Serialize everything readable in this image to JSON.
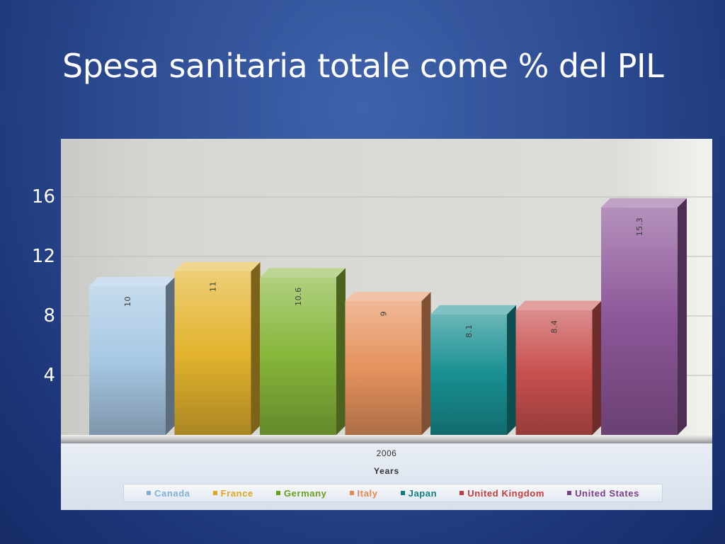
{
  "slide": {
    "title": "Spesa sanitaria totale come % del PIL"
  },
  "chart_data": {
    "type": "bar",
    "title": "Spesa sanitaria totale come % del PIL",
    "categories": [
      "2006"
    ],
    "xlabel": "Years",
    "ylabel": "",
    "ylim": [
      0,
      19
    ],
    "yticks": [
      4,
      8,
      12,
      16
    ],
    "grid": true,
    "legend_position": "bottom",
    "series": [
      {
        "name": "Canada",
        "values": [
          10
        ],
        "label": "10",
        "color": "#a8c8e4"
      },
      {
        "name": "France",
        "values": [
          11
        ],
        "label": "11",
        "color": "#e3b32e"
      },
      {
        "name": "Germany",
        "values": [
          10.6
        ],
        "label": "10.6",
        "color": "#86b63a"
      },
      {
        "name": "Italy",
        "values": [
          9
        ],
        "label": "9",
        "color": "#e6925e"
      },
      {
        "name": "Japan",
        "values": [
          8.1
        ],
        "label": "8.1",
        "color": "#188f91"
      },
      {
        "name": "United Kingdom",
        "values": [
          8.4
        ],
        "label": "8.4",
        "color": "#c8504f"
      },
      {
        "name": "United States",
        "values": [
          15.3
        ],
        "label": "15.3",
        "color": "#8c5698"
      }
    ]
  },
  "legend_colors": {
    "Canada": "#7fb0d8",
    "France": "#e0a51c",
    "Germany": "#6a9f1e",
    "Italy": "#e8864a",
    "Japan": "#0b7f80",
    "United Kingdom": "#c43b3b",
    "United States": "#7a3f8a"
  }
}
